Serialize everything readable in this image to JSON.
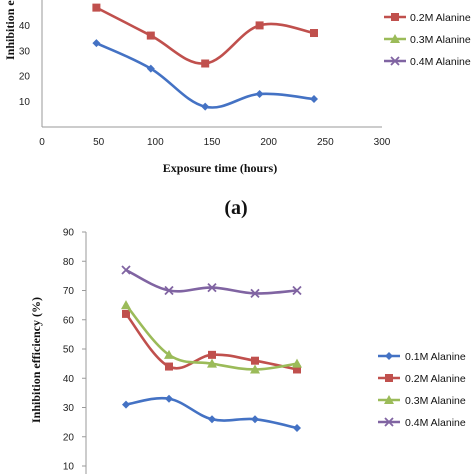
{
  "chart_data": [
    {
      "type": "line",
      "panel_label": "(a)",
      "xlabel": "Exposure time (hours)",
      "ylabel": "Inhibition e",
      "xlim": [
        0,
        300
      ],
      "x_ticks": [
        "0",
        "50",
        "100",
        "150",
        "200",
        "250",
        "300"
      ],
      "ylim": [
        0,
        50
      ],
      "y_ticks": [
        "10",
        "20",
        "30",
        "40"
      ],
      "x": [
        48,
        96,
        144,
        192,
        240
      ],
      "series": [
        {
          "name": "",
          "color": "#4472C4",
          "marker": "diamond",
          "values": [
            33,
            23,
            8,
            13,
            11
          ]
        },
        {
          "name": "",
          "color": "#C0504D",
          "marker": "square",
          "values": [
            47,
            36,
            25,
            40,
            37
          ]
        }
      ],
      "legend": [
        {
          "name": "0.2M Alanine",
          "color": "#C0504D",
          "marker": "square"
        },
        {
          "name": "0.3M Alanine",
          "color": "#9BBB59",
          "marker": "triangle"
        },
        {
          "name": "0.4M Alanine",
          "color": "#8064A2",
          "marker": "x"
        }
      ],
      "legend_position": "right"
    },
    {
      "type": "line",
      "xlabel": "",
      "ylabel": "Inhibition efficiency (%)",
      "ylim": [
        10,
        90
      ],
      "y_ticks": [
        "10",
        "20",
        "30",
        "40",
        "50",
        "60",
        "70",
        "80",
        "90"
      ],
      "x": [
        48,
        96,
        144,
        192,
        240
      ],
      "series": [
        {
          "name": "0.1M Alanine",
          "color": "#4472C4",
          "marker": "diamond",
          "values": [
            31,
            33,
            26,
            26,
            23
          ]
        },
        {
          "name": "0.2M Alanine",
          "color": "#C0504D",
          "marker": "square",
          "values": [
            62,
            44,
            48,
            46,
            43
          ]
        },
        {
          "name": "0.3M Alanine",
          "color": "#9BBB59",
          "marker": "triangle",
          "values": [
            65,
            48,
            45,
            43,
            45
          ]
        },
        {
          "name": "0.4M Alanine",
          "color": "#8064A2",
          "marker": "x",
          "values": [
            77,
            70,
            71,
            69,
            70
          ]
        }
      ],
      "legend_position": "right"
    }
  ]
}
